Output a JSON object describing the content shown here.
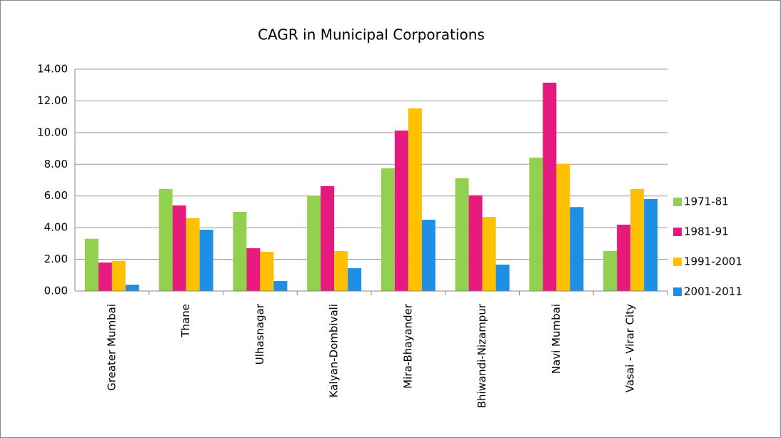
{
  "chart_data": {
    "type": "bar",
    "title": "CAGR in Municipal Corporations",
    "categories": [
      "Greater Mumbai",
      "Thane",
      "Ulhasnagar",
      "Kalyan-Dombivali",
      "Mira-Bhayander",
      "Bhiwandi-Nizampur",
      "Navi Mumbai",
      "Vasai - Virar  City"
    ],
    "series": [
      {
        "name": "1971-81",
        "color": "#92d050",
        "values": [
          3.3,
          6.44,
          5.0,
          6.0,
          7.75,
          7.12,
          8.42,
          2.52
        ]
      },
      {
        "name": "1981-91",
        "color": "#e6197d",
        "values": [
          1.8,
          5.4,
          2.7,
          6.62,
          10.13,
          6.04,
          13.15,
          4.19
        ]
      },
      {
        "name": "1991-2001",
        "color": "#ffc000",
        "values": [
          1.9,
          4.6,
          2.48,
          2.52,
          11.53,
          4.68,
          8.02,
          6.44
        ]
      },
      {
        "name": "2001-2011",
        "color": "#1f8fe6",
        "values": [
          0.4,
          3.87,
          0.63,
          1.44,
          4.5,
          1.67,
          5.3,
          5.81
        ]
      }
    ],
    "ylim": [
      0,
      14
    ],
    "yticks": [
      {
        "value": 0,
        "label": "0.00"
      },
      {
        "value": 2,
        "label": "2.00"
      },
      {
        "value": 4,
        "label": "4.00"
      },
      {
        "value": 6,
        "label": "6.00"
      },
      {
        "value": 8,
        "label": "8.00"
      },
      {
        "value": 10,
        "label": "10.00"
      },
      {
        "value": 12,
        "label": "12.00"
      },
      {
        "value": 14,
        "label": "14.00"
      }
    ],
    "grid": true,
    "legend": "right"
  }
}
